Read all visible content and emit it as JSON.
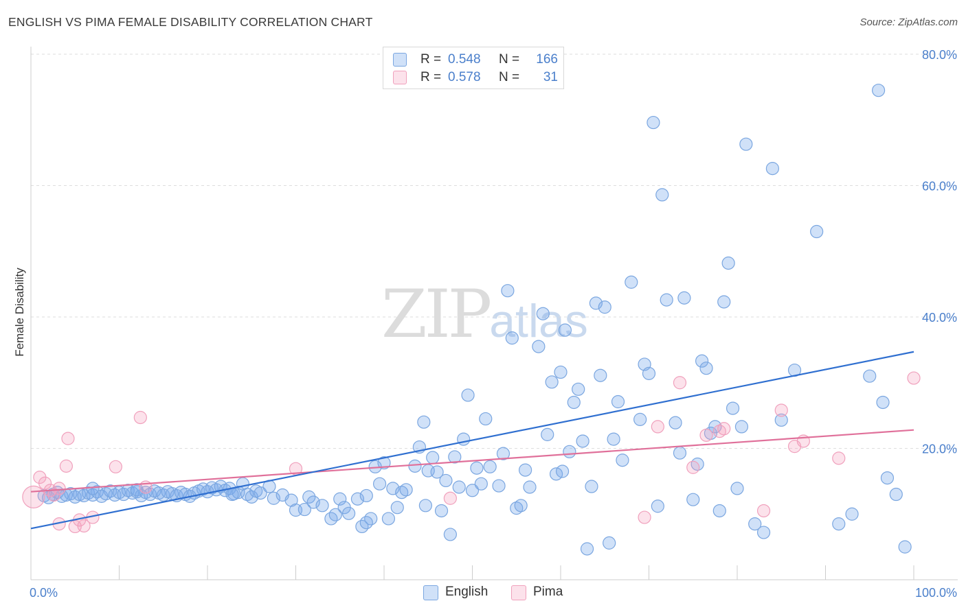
{
  "title": "ENGLISH VS PIMA FEMALE DISABILITY CORRELATION CHART",
  "source": "Source: ZipAtlas.com",
  "watermark": {
    "zip": "ZIP",
    "atlas": "atlas"
  },
  "colors": {
    "english_fill": "rgba(120,170,235,0.35)",
    "english_stroke": "#7aa6e0",
    "english_line": "#2f6fd0",
    "pima_fill": "rgba(245,160,190,0.30)",
    "pima_stroke": "#f0a0bc",
    "pima_line": "#e0709a",
    "grid": "#dddddd",
    "tick_label": "#4a7fcb"
  },
  "legend": {
    "r_label": "R =",
    "n_label": "N =",
    "english": {
      "r": "0.548",
      "n": "166"
    },
    "pima": {
      "r": "0.578",
      "n": "31"
    }
  },
  "chart_data": {
    "type": "scatter",
    "title": "ENGLISH VS PIMA FEMALE DISABILITY CORRELATION CHART",
    "xlabel": "",
    "ylabel": "Female Disability",
    "xlim": [
      0,
      100
    ],
    "ylim": [
      0,
      80
    ],
    "x_tick_labels": [
      "0.0%",
      "100.0%"
    ],
    "y_ticks": [
      20,
      40,
      60,
      80
    ],
    "y_tick_labels": [
      "20.0%",
      "40.0%",
      "60.0%",
      "80.0%"
    ],
    "grid": "horizontal dashed",
    "legend_position": "top-center, bottom-center",
    "series": [
      {
        "name": "English",
        "r": 0.548,
        "n": 166,
        "trend": {
          "x": [
            0,
            100
          ],
          "y": [
            7.8,
            34.7
          ]
        },
        "points": [
          [
            1.5,
            12.8
          ],
          [
            2.0,
            12.5
          ],
          [
            2.5,
            13.0
          ],
          [
            3.0,
            13.3
          ],
          [
            3.5,
            12.7
          ],
          [
            4.0,
            12.9
          ],
          [
            4.5,
            13.1
          ],
          [
            5.0,
            12.6
          ],
          [
            5.5,
            13.0
          ],
          [
            6.0,
            12.8
          ],
          [
            6.5,
            13.2
          ],
          [
            7.0,
            12.9
          ],
          [
            7.5,
            13.4
          ],
          [
            8.0,
            12.7
          ],
          [
            8.5,
            13.1
          ],
          [
            9.0,
            13.5
          ],
          [
            9.5,
            12.9
          ],
          [
            10.0,
            13.3
          ],
          [
            10.5,
            13.0
          ],
          [
            11.0,
            13.6
          ],
          [
            11.5,
            13.2
          ],
          [
            12.0,
            13.4
          ],
          [
            12.5,
            12.8
          ],
          [
            13.0,
            13.3
          ],
          [
            13.5,
            13.0
          ],
          [
            14.0,
            13.5
          ],
          [
            14.5,
            13.2
          ],
          [
            15.0,
            12.9
          ],
          [
            15.5,
            13.4
          ],
          [
            16.0,
            13.1
          ],
          [
            16.5,
            12.8
          ],
          [
            17.0,
            13.3
          ],
          [
            17.5,
            13.0
          ],
          [
            18.0,
            12.7
          ],
          [
            18.5,
            13.2
          ],
          [
            19.0,
            13.5
          ],
          [
            19.5,
            13.8
          ],
          [
            20.0,
            13.4
          ],
          [
            20.5,
            14.0
          ],
          [
            21.0,
            13.7
          ],
          [
            21.5,
            14.2
          ],
          [
            22.0,
            13.6
          ],
          [
            22.5,
            13.9
          ],
          [
            23.0,
            13.1
          ],
          [
            23.5,
            13.3
          ],
          [
            24.0,
            14.6
          ],
          [
            24.5,
            13.0
          ],
          [
            25.0,
            12.6
          ],
          [
            25.5,
            13.5
          ],
          [
            26.0,
            13.2
          ],
          [
            27.0,
            14.2
          ],
          [
            27.5,
            12.4
          ],
          [
            28.5,
            12.9
          ],
          [
            29.5,
            12.1
          ],
          [
            30.0,
            10.6
          ],
          [
            31.5,
            12.6
          ],
          [
            32.0,
            11.8
          ],
          [
            33.0,
            11.3
          ],
          [
            34.0,
            9.3
          ],
          [
            34.5,
            9.9
          ],
          [
            35.0,
            12.3
          ],
          [
            35.5,
            11.0
          ],
          [
            36.0,
            10.1
          ],
          [
            37.0,
            12.3
          ],
          [
            37.5,
            8.1
          ],
          [
            38.0,
            12.8
          ],
          [
            38.5,
            9.3
          ],
          [
            38.0,
            8.7
          ],
          [
            39.0,
            17.2
          ],
          [
            39.5,
            14.6
          ],
          [
            40.0,
            17.8
          ],
          [
            40.5,
            9.3
          ],
          [
            41.0,
            13.9
          ],
          [
            41.5,
            11.0
          ],
          [
            42.0,
            13.3
          ],
          [
            42.5,
            13.7
          ],
          [
            43.5,
            17.3
          ],
          [
            44.0,
            20.2
          ],
          [
            44.5,
            24.0
          ],
          [
            45.0,
            16.6
          ],
          [
            45.5,
            18.6
          ],
          [
            46.0,
            16.4
          ],
          [
            46.5,
            10.5
          ],
          [
            47.0,
            15.1
          ],
          [
            47.5,
            6.9
          ],
          [
            48.0,
            18.7
          ],
          [
            48.5,
            14.1
          ],
          [
            49.0,
            21.4
          ],
          [
            49.5,
            28.1
          ],
          [
            50.0,
            13.6
          ],
          [
            50.5,
            17.0
          ],
          [
            51.0,
            14.6
          ],
          [
            51.5,
            24.5
          ],
          [
            52.0,
            17.2
          ],
          [
            53.0,
            14.3
          ],
          [
            53.5,
            19.2
          ],
          [
            54.0,
            44.0
          ],
          [
            54.5,
            36.8
          ],
          [
            55.0,
            10.9
          ],
          [
            55.5,
            11.3
          ],
          [
            56.0,
            16.7
          ],
          [
            56.5,
            14.1
          ],
          [
            57.5,
            35.5
          ],
          [
            58.0,
            40.5
          ],
          [
            58.5,
            22.1
          ],
          [
            59.0,
            30.1
          ],
          [
            59.5,
            16.1
          ],
          [
            60.0,
            31.6
          ],
          [
            60.5,
            38.0
          ],
          [
            61.0,
            19.5
          ],
          [
            61.5,
            27.0
          ],
          [
            62.0,
            29.0
          ],
          [
            62.5,
            21.1
          ],
          [
            63.0,
            4.7
          ],
          [
            63.5,
            14.2
          ],
          [
            64.0,
            42.1
          ],
          [
            64.5,
            31.1
          ],
          [
            65.0,
            41.5
          ],
          [
            65.5,
            5.6
          ],
          [
            66.0,
            21.4
          ],
          [
            66.5,
            27.1
          ],
          [
            67.0,
            18.2
          ],
          [
            68.0,
            45.3
          ],
          [
            69.0,
            24.4
          ],
          [
            69.5,
            32.8
          ],
          [
            70.0,
            31.4
          ],
          [
            70.5,
            69.6
          ],
          [
            71.0,
            11.2
          ],
          [
            71.5,
            58.6
          ],
          [
            72.0,
            42.6
          ],
          [
            73.0,
            23.9
          ],
          [
            73.5,
            19.3
          ],
          [
            74.0,
            42.9
          ],
          [
            75.0,
            12.2
          ],
          [
            75.5,
            17.6
          ],
          [
            76.0,
            33.3
          ],
          [
            76.5,
            32.2
          ],
          [
            77.0,
            22.3
          ],
          [
            77.5,
            23.3
          ],
          [
            78.0,
            10.5
          ],
          [
            78.5,
            42.3
          ],
          [
            79.0,
            48.2
          ],
          [
            79.5,
            26.1
          ],
          [
            80.0,
            13.9
          ],
          [
            80.5,
            23.3
          ],
          [
            81.0,
            66.3
          ],
          [
            82.0,
            8.5
          ],
          [
            83.0,
            7.2
          ],
          [
            84.0,
            62.6
          ],
          [
            85.0,
            24.3
          ],
          [
            86.5,
            31.9
          ],
          [
            89.0,
            53.0
          ],
          [
            91.5,
            8.5
          ],
          [
            93.0,
            10.0
          ],
          [
            95.0,
            31.0
          ],
          [
            96.0,
            74.5
          ],
          [
            96.5,
            27.0
          ],
          [
            97.0,
            15.5
          ],
          [
            98.0,
            13.0
          ],
          [
            99.0,
            5.0
          ],
          [
            7.0,
            13.9
          ],
          [
            12.0,
            13.7
          ],
          [
            22.8,
            13.0
          ],
          [
            31.0,
            10.7
          ],
          [
            44.7,
            11.3
          ],
          [
            60.2,
            16.5
          ]
        ]
      },
      {
        "name": "Pima",
        "r": 0.578,
        "n": 31,
        "trend": {
          "x": [
            0,
            100
          ],
          "y": [
            13.4,
            22.8
          ]
        },
        "points": [
          [
            0.3,
            12.6
          ],
          [
            1.0,
            15.6
          ],
          [
            1.6,
            14.7
          ],
          [
            2.2,
            13.6
          ],
          [
            2.6,
            12.9
          ],
          [
            3.2,
            13.9
          ],
          [
            3.2,
            8.5
          ],
          [
            4.0,
            17.3
          ],
          [
            4.2,
            21.5
          ],
          [
            5.0,
            8.1
          ],
          [
            5.5,
            9.1
          ],
          [
            6.0,
            8.2
          ],
          [
            7.0,
            9.5
          ],
          [
            9.6,
            17.2
          ],
          [
            12.4,
            24.7
          ],
          [
            13.0,
            14.1
          ],
          [
            30.0,
            16.9
          ],
          [
            47.5,
            12.4
          ],
          [
            69.5,
            9.5
          ],
          [
            71.0,
            23.3
          ],
          [
            73.5,
            30.0
          ],
          [
            75.0,
            17.1
          ],
          [
            78.0,
            22.6
          ],
          [
            78.5,
            23.0
          ],
          [
            83.0,
            10.5
          ],
          [
            85.0,
            25.8
          ],
          [
            86.5,
            20.3
          ],
          [
            87.5,
            21.1
          ],
          [
            91.5,
            18.5
          ],
          [
            100,
            30.7
          ],
          [
            76.5,
            22.0
          ]
        ]
      }
    ]
  }
}
